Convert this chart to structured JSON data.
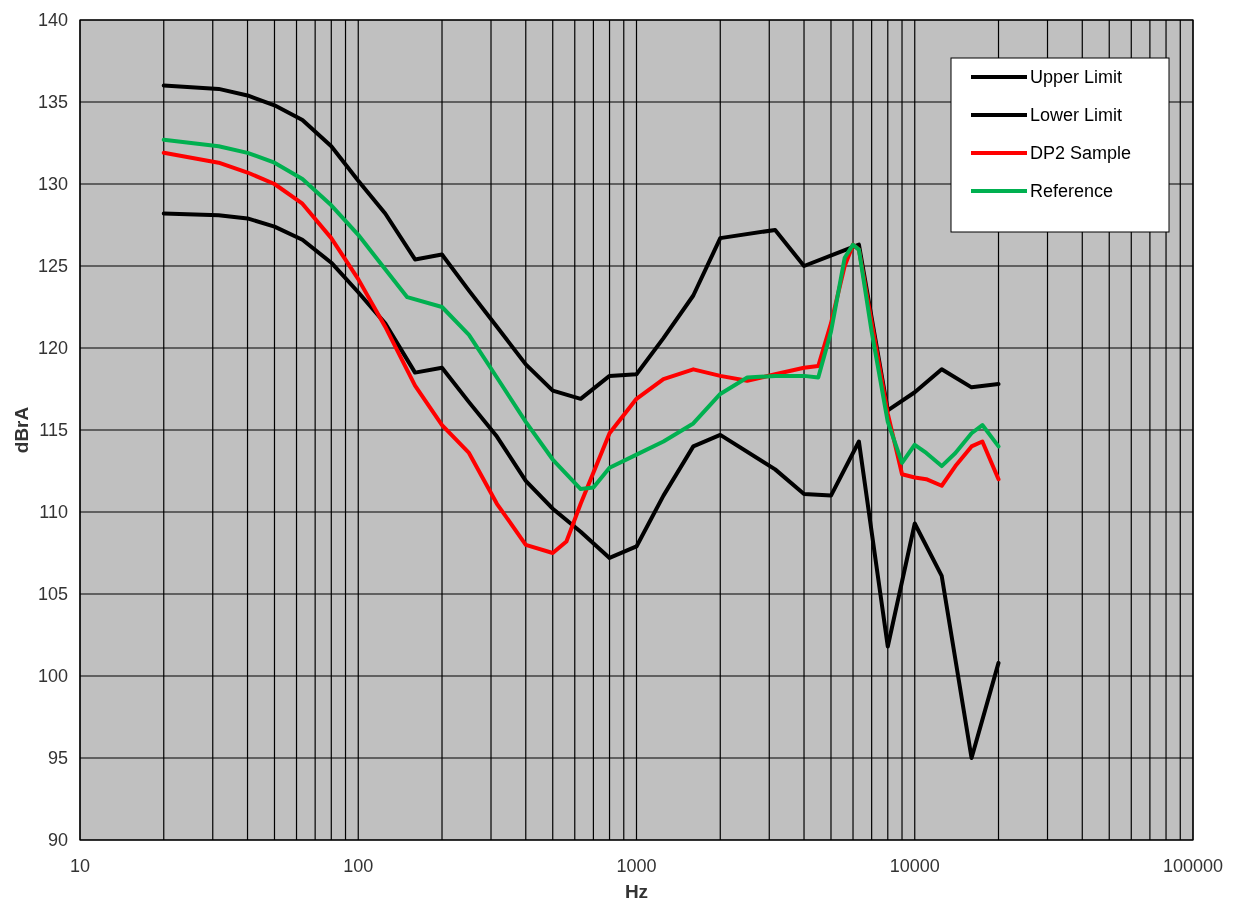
{
  "chart_data": {
    "type": "line",
    "xlabel": "Hz",
    "ylabel": "dBrA",
    "log": "x",
    "xlim": [
      10,
      100000
    ],
    "xticks": [
      10,
      100,
      1000,
      10000,
      100000
    ],
    "ylim": [
      90,
      140
    ],
    "yticks": [
      90,
      95,
      100,
      105,
      110,
      115,
      120,
      125,
      130,
      135,
      140
    ],
    "grid": true,
    "legend": "top right",
    "line_style": "solid",
    "marker": "none",
    "series": [
      {
        "name": "Upper Limit",
        "color": "#000000",
        "x": [
          20,
          31.5,
          40,
          50,
          63,
          80,
          100,
          125,
          160,
          200,
          250,
          315,
          400,
          500,
          630,
          800,
          1000,
          1250,
          1600,
          2000,
          3150,
          4000,
          6300,
          8000,
          10000,
          12500,
          16000,
          20000
        ],
        "values": [
          136.0,
          135.8,
          135.4,
          134.8,
          133.9,
          132.3,
          130.2,
          128.2,
          125.4,
          125.7,
          123.5,
          121.3,
          119.0,
          117.4,
          116.9,
          118.3,
          118.4,
          120.6,
          123.2,
          126.7,
          127.2,
          125.0,
          126.3,
          116.2,
          117.3,
          118.7,
          117.6,
          117.8
        ]
      },
      {
        "name": "Lower Limit",
        "color": "#000000",
        "x": [
          20,
          31.5,
          40,
          50,
          63,
          80,
          100,
          125,
          160,
          200,
          250,
          315,
          400,
          500,
          630,
          800,
          1000,
          1250,
          1600,
          2000,
          3150,
          4000,
          5000,
          6300,
          8000,
          10000,
          12500,
          16000,
          20000
        ],
        "values": [
          128.2,
          128.1,
          127.9,
          127.4,
          126.6,
          125.2,
          123.4,
          121.5,
          118.5,
          118.8,
          116.7,
          114.6,
          111.9,
          110.2,
          108.8,
          107.2,
          107.9,
          111.0,
          114.0,
          114.7,
          112.6,
          111.1,
          111.0,
          114.3,
          101.8,
          109.3,
          106.1,
          95.0,
          100.8
        ]
      },
      {
        "name": "DP2 Sample",
        "color": "#ff0000",
        "x": [
          20,
          31.5,
          40,
          50,
          63,
          80,
          100,
          125,
          160,
          200,
          250,
          315,
          400,
          500,
          560,
          630,
          800,
          1000,
          1250,
          1600,
          2000,
          2500,
          3150,
          4000,
          4500,
          5000,
          5600,
          6000,
          6300,
          7000,
          8000,
          9000,
          10000,
          11000,
          12500,
          14000,
          16000,
          17500,
          20000
        ],
        "values": [
          131.9,
          131.3,
          130.7,
          130.0,
          128.8,
          126.7,
          124.2,
          121.3,
          117.7,
          115.3,
          113.6,
          110.5,
          108.0,
          107.5,
          108.2,
          110.5,
          114.8,
          116.9,
          118.1,
          118.7,
          118.3,
          118.0,
          118.4,
          118.8,
          118.9,
          121.5,
          125.0,
          126.3,
          126.0,
          null,
          116.0,
          112.3,
          112.1,
          112.0,
          111.6,
          112.8,
          114.0,
          114.3,
          112.0
        ]
      },
      {
        "name": "Reference",
        "color": "#00b050",
        "x": [
          20,
          31.5,
          40,
          50,
          63,
          80,
          100,
          125,
          150,
          200,
          250,
          315,
          400,
          500,
          630,
          700,
          800,
          1000,
          1250,
          1600,
          2000,
          2500,
          3150,
          4000,
          4500,
          5000,
          5600,
          6000,
          6300,
          7000,
          8000,
          9000,
          10000,
          11000,
          12500,
          14000,
          16000,
          17500,
          20000
        ],
        "values": [
          132.7,
          132.3,
          131.9,
          131.3,
          130.3,
          128.7,
          126.9,
          124.8,
          123.1,
          122.5,
          120.8,
          118.2,
          115.5,
          113.2,
          111.4,
          111.5,
          112.7,
          113.5,
          114.3,
          115.4,
          117.2,
          118.2,
          118.3,
          118.3,
          118.2,
          121.0,
          125.5,
          126.3,
          126.0,
          121.0,
          115.5,
          113.0,
          114.1,
          113.6,
          112.8,
          113.6,
          114.8,
          115.3,
          114.0
        ]
      }
    ]
  }
}
